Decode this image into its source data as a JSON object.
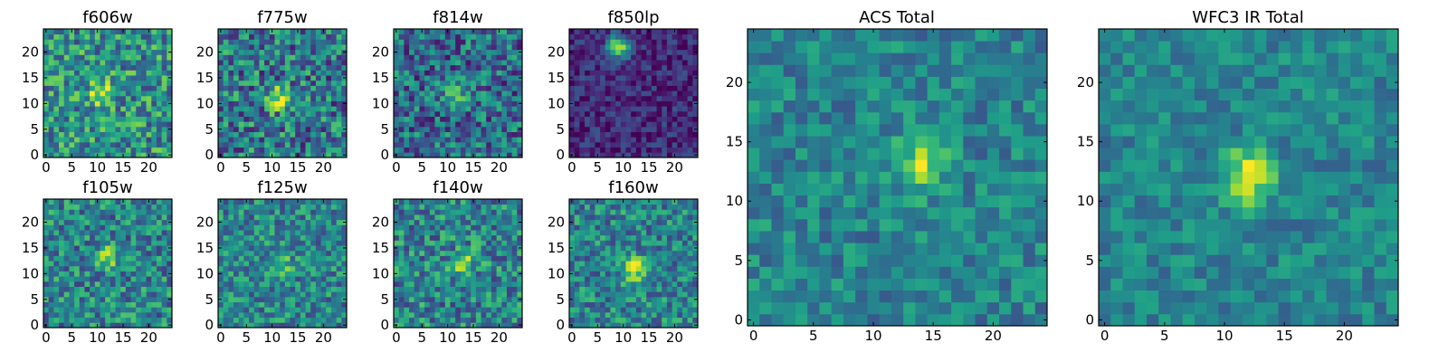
{
  "chart_data": [
    {
      "type": "heatmap",
      "title": "f606w",
      "xlim": [
        0,
        25
      ],
      "ylim": [
        0,
        25
      ],
      "xticks": [
        "0",
        "5",
        "10",
        "15",
        "20"
      ],
      "yticks": [
        "0",
        "5",
        "10",
        "15",
        "20"
      ],
      "grid_size": 25,
      "colormap": "viridis",
      "peak": [
        11,
        12
      ],
      "peak_strength": 0.55,
      "noise": 0.6,
      "background": 0.5
    },
    {
      "type": "heatmap",
      "title": "f775w",
      "xlim": [
        0,
        25
      ],
      "ylim": [
        0,
        25
      ],
      "xticks": [
        "0",
        "5",
        "10",
        "15",
        "20"
      ],
      "yticks": [
        "0",
        "5",
        "10",
        "15",
        "20"
      ],
      "grid_size": 25,
      "colormap": "viridis",
      "peak": [
        11,
        11
      ],
      "peak_strength": 0.5,
      "noise": 0.65,
      "background": 0.4
    },
    {
      "type": "heatmap",
      "title": "f814w",
      "xlim": [
        0,
        25
      ],
      "ylim": [
        0,
        25
      ],
      "xticks": [
        "0",
        "5",
        "10",
        "15",
        "20"
      ],
      "yticks": [
        "0",
        "5",
        "10",
        "15",
        "20"
      ],
      "grid_size": 25,
      "colormap": "viridis",
      "peak": [
        12,
        11
      ],
      "peak_strength": 0.4,
      "noise": 0.6,
      "background": 0.35
    },
    {
      "type": "heatmap",
      "title": "f850lp",
      "xlim": [
        0,
        25
      ],
      "ylim": [
        0,
        25
      ],
      "xticks": [
        "0",
        "5",
        "10",
        "15",
        "20"
      ],
      "yticks": [
        "0",
        "5",
        "10",
        "15",
        "20"
      ],
      "grid_size": 25,
      "colormap": "viridis",
      "peak": [
        9,
        21
      ],
      "peak_strength": 0.8,
      "noise": 0.3,
      "background": 0.12
    },
    {
      "type": "heatmap",
      "title": "f105w",
      "xlim": [
        0,
        25
      ],
      "ylim": [
        0,
        25
      ],
      "xticks": [
        "0",
        "5",
        "10",
        "15",
        "20"
      ],
      "yticks": [
        "0",
        "5",
        "10",
        "15",
        "20"
      ],
      "grid_size": 25,
      "colormap": "viridis",
      "peak": [
        12,
        13
      ],
      "peak_strength": 0.45,
      "noise": 0.55,
      "background": 0.45
    },
    {
      "type": "heatmap",
      "title": "f125w",
      "xlim": [
        0,
        25
      ],
      "ylim": [
        0,
        25
      ],
      "xticks": [
        "0",
        "5",
        "10",
        "15",
        "20"
      ],
      "yticks": [
        "0",
        "5",
        "10",
        "15",
        "20"
      ],
      "grid_size": 25,
      "colormap": "viridis",
      "peak": [
        12,
        12
      ],
      "peak_strength": 0.25,
      "noise": 0.5,
      "background": 0.45
    },
    {
      "type": "heatmap",
      "title": "f140w",
      "xlim": [
        0,
        25
      ],
      "ylim": [
        0,
        25
      ],
      "xticks": [
        "0",
        "5",
        "10",
        "15",
        "20"
      ],
      "yticks": [
        "0",
        "5",
        "10",
        "15",
        "20"
      ],
      "grid_size": 25,
      "colormap": "viridis",
      "peak": [
        13,
        12
      ],
      "peak_strength": 0.4,
      "noise": 0.55,
      "background": 0.45
    },
    {
      "type": "heatmap",
      "title": "f160w",
      "xlim": [
        0,
        25
      ],
      "ylim": [
        0,
        25
      ],
      "xticks": [
        "0",
        "5",
        "10",
        "15",
        "20"
      ],
      "yticks": [
        "0",
        "5",
        "10",
        "15",
        "20"
      ],
      "grid_size": 25,
      "colormap": "viridis",
      "peak": [
        12,
        11
      ],
      "peak_strength": 0.55,
      "noise": 0.5,
      "background": 0.45
    },
    {
      "type": "heatmap",
      "title": "ACS Total",
      "xlim": [
        0,
        25
      ],
      "ylim": [
        0,
        25
      ],
      "xticks": [
        "0",
        "5",
        "10",
        "15",
        "20"
      ],
      "yticks": [
        "0",
        "5",
        "10",
        "15",
        "20"
      ],
      "grid_size": 25,
      "colormap": "viridis",
      "peak": [
        14,
        13
      ],
      "peak_strength": 0.45,
      "noise": 0.35,
      "background": 0.45
    },
    {
      "type": "heatmap",
      "title": "WFC3 IR Total",
      "xlim": [
        0,
        25
      ],
      "ylim": [
        0,
        25
      ],
      "xticks": [
        "0",
        "5",
        "10",
        "15",
        "20"
      ],
      "yticks": [
        "0",
        "5",
        "10",
        "15",
        "20"
      ],
      "grid_size": 25,
      "colormap": "viridis",
      "peak": [
        12,
        12
      ],
      "peak_strength": 0.55,
      "noise": 0.3,
      "background": 0.45
    }
  ]
}
